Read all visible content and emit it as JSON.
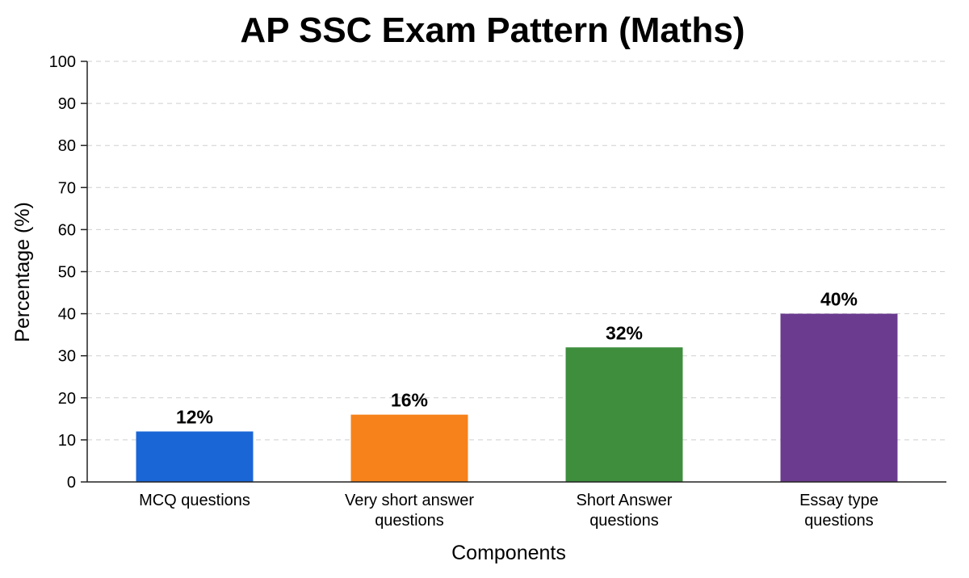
{
  "chart_data": {
    "type": "bar",
    "title": "AP SSC Exam Pattern (Maths)",
    "xlabel": "Components",
    "ylabel": "Percentage (%)",
    "categories": [
      [
        "MCQ questions"
      ],
      [
        "Very short answer",
        "questions"
      ],
      [
        "Short Answer",
        "questions"
      ],
      [
        "Essay type",
        "questions"
      ]
    ],
    "values": [
      12,
      16,
      32,
      40
    ],
    "data_labels": [
      "12%",
      "16%",
      "32%",
      "40%"
    ],
    "colors": [
      "#1a66d6",
      "#f7821b",
      "#3e8e3e",
      "#6a3b8f"
    ],
    "ylim": [
      0,
      100
    ],
    "yticks": [
      0,
      10,
      20,
      30,
      40,
      50,
      60,
      70,
      80,
      90,
      100
    ],
    "grid": true,
    "legend": "none"
  }
}
